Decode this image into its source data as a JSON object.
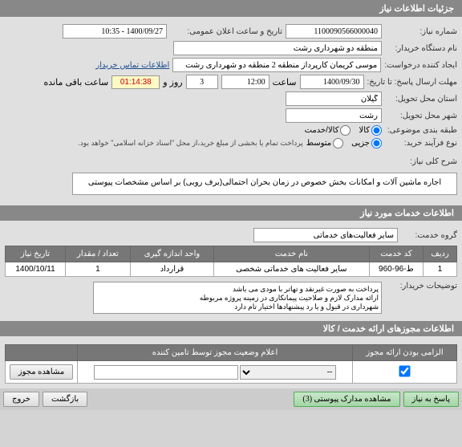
{
  "header": {
    "title": "جزئیات اطلاعات نیاز"
  },
  "fields": {
    "need_number_label": "شماره نیاز:",
    "need_number": "1100090566000040",
    "announce_label": "تاریخ و ساعت اعلان عمومی:",
    "announce_value": "1400/09/27 - 10:35",
    "buyer_label": "نام دستگاه خریدار:",
    "buyer_value": "منطقه دو شهرداری رشت",
    "creator_label": "ایجاد کننده درخواست:",
    "creator_value": "موسی کریمان کارپرداز منطقه 2 منطقه دو شهرداری رشت",
    "contact_link": "اطلاعات تماس خریدار",
    "deadline_label": "مهلت ارسال پاسخ: تا تاریخ:",
    "deadline_date": "1400/09/30",
    "hour_label": "ساعت",
    "deadline_hour": "12:00",
    "day_label": "روز و",
    "days_remaining": "3",
    "remaining_time": "01:14:38",
    "remaining_label": "ساعت باقی مانده",
    "province_label": "استان محل تحویل:",
    "province_value": "گیلان",
    "city_label": "شهر محل تحویل:",
    "city_value": "رشت",
    "category_label": "طبقه بندی موضوعی:",
    "cat_goods": "کالا",
    "cat_service": "کالا/خدمت",
    "process_label": "نوع فرآیند خرید:",
    "proc_partial": "جزیی",
    "proc_medium": "متوسط",
    "proc_note": "پرداخت تمام یا بخشی از مبلغ خرید،از محل \"اسناد خزانه اسلامی\" خواهد بود.",
    "subject_label": "شرح کلی نیاز:",
    "subject_text": "اجاره ماشین آلات و امکانات بخش خصوص در زمان بحران احتمالی(برف روبی) بر اساس مشخصات پیوستی"
  },
  "services_header": "اطلاعات خدمات مورد نیاز",
  "group_label": "گروه خدمت:",
  "group_value": "سایر فعالیت‌های خدماتی",
  "service_table": {
    "columns": [
      "ردیف",
      "کد خدمت",
      "نام خدمت",
      "واحد اندازه گیری",
      "تعداد / مقدار",
      "تاریخ نیاز"
    ],
    "rows": [
      [
        "1",
        "ط-96-960",
        "سایر فعالیت های خدماتی شخصی",
        "قرارداد",
        "1",
        "1400/10/11"
      ]
    ]
  },
  "buyer_notes_label": "توضیحات خریدار:",
  "buyer_notes": "پرداخت به صورت غیرنقد و تهاتر با مودی می باشد\nارائه مدارک لازم و صلاحیت پیمانکاری در زمینه پروژه مربوطه\nشهرداری در قبول و یا رد پیشنهادها اختیار تام دارد",
  "permits_header": "اطلاعات مجوزهای ارائه خدمت / کالا",
  "permits_table": {
    "columns": [
      "الزامی بودن ارائه مجوز",
      "اعلام وضعیت مجوز توسط تامین کننده",
      ""
    ],
    "view_btn": "مشاهده مجوز",
    "select_placeholder": "--"
  },
  "footer": {
    "tab1": "پاسخ به نیاز",
    "tab2": "مشاهده مدارک پیوستی (3)",
    "btn_back": "بازگشت",
    "btn_exit": "خروج"
  }
}
